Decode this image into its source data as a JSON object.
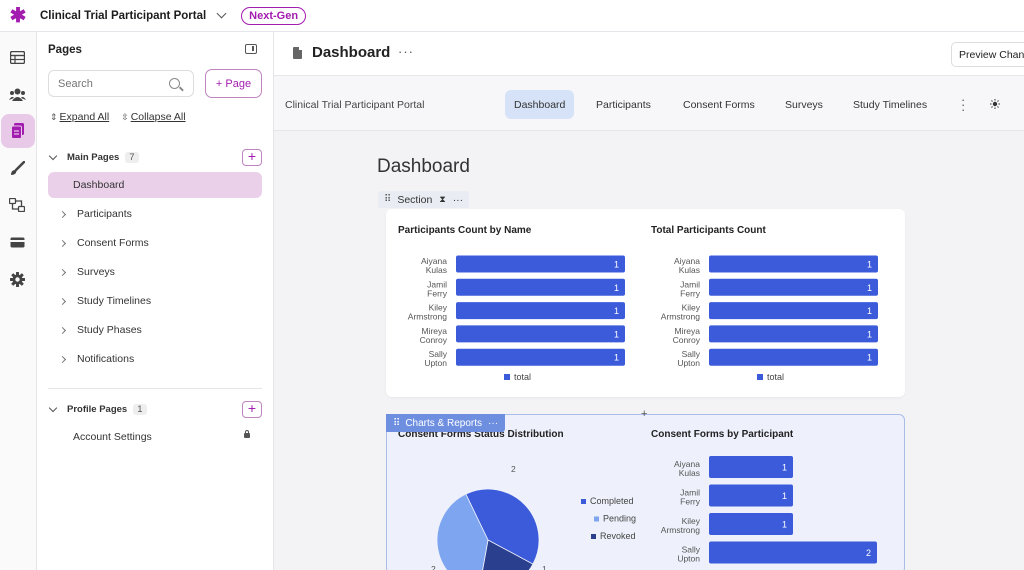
{
  "app": {
    "title": "Clinical Trial Participant Portal",
    "badge": "Next-Gen",
    "logo": "asterisk-logo"
  },
  "rail": {
    "icons": [
      "table-icon",
      "users-icon",
      "pages-icon",
      "brush-icon",
      "workflow-icon",
      "card-icon",
      "gear-icon"
    ],
    "active_index": 2
  },
  "sidebar": {
    "title": "Pages",
    "search_placeholder": "Search",
    "add_page_label": "+ Page",
    "expand_all": "Expand All",
    "collapse_all": "Collapse All",
    "main_group": {
      "label": "Main Pages",
      "count": "7"
    },
    "main_items": [
      "Dashboard",
      "Participants",
      "Consent Forms",
      "Surveys",
      "Study Timelines",
      "Study Phases",
      "Notifications"
    ],
    "profile_group": {
      "label": "Profile Pages",
      "count": "1"
    },
    "profile_items": [
      "Account Settings"
    ]
  },
  "main": {
    "title": "Dashboard",
    "preview_button": "Preview Chan",
    "site_brand": "Clinical Trial Participant Portal",
    "nav_tabs": [
      "Dashboard",
      "Participants",
      "Consent Forms",
      "Surveys",
      "Study Timelines"
    ],
    "page_heading": "Dashboard",
    "section_label": "Section",
    "reports_label": "Charts & Reports"
  },
  "colors": {
    "accent": "#a21caf",
    "bar": "#3b5bdb",
    "pie_completed": "#3b5bdb",
    "pie_pending": "#7ea6f0",
    "pie_revoked": "#2b3f8f"
  },
  "chart_data": [
    {
      "type": "bar",
      "title": "Participants Count by Name",
      "categories": [
        "Aiyana Kulas",
        "Jamil Ferry",
        "Kiley Armstrong",
        "Mireya Conroy",
        "Sally Upton"
      ],
      "series": [
        {
          "name": "total",
          "values": [
            1,
            1,
            1,
            1,
            1
          ]
        }
      ]
    },
    {
      "type": "bar",
      "title": "Total Participants Count",
      "categories": [
        "Aiyana Kulas",
        "Jamil Ferry",
        "Kiley Armstrong",
        "Mireya Conroy",
        "Sally Upton"
      ],
      "series": [
        {
          "name": "total",
          "values": [
            1,
            1,
            1,
            1,
            1
          ]
        }
      ]
    },
    {
      "type": "pie",
      "title": "Consent Forms Status Distribution",
      "categories": [
        "Completed",
        "Pending",
        "Revoked"
      ],
      "values": [
        2,
        2,
        1
      ]
    },
    {
      "type": "bar",
      "title": "Consent Forms by Participant",
      "categories": [
        "Aiyana Kulas",
        "Jamil Ferry",
        "Kiley Armstrong",
        "Sally Upton"
      ],
      "values": [
        1,
        1,
        1,
        2
      ]
    }
  ]
}
